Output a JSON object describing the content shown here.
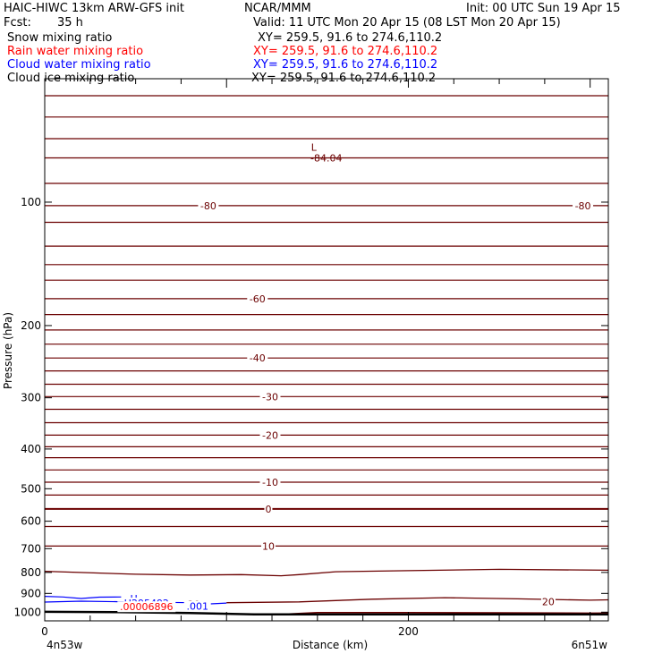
{
  "header": {
    "model": "HAIC-HIWC 13km ARW-GFS init",
    "org": "NCAR/MMM",
    "init": "Init: 00 UTC Sun 19 Apr 15",
    "fcst_label": "Fcst:",
    "fcst_value": "35 h",
    "valid": "Valid: 11 UTC Mon 20 Apr 15 (08 LST Mon 20 Apr 15)"
  },
  "legend": [
    {
      "name": "Snow mixing ratio",
      "xy": "XY= 259.5, 91.6 to 274.6,110.2",
      "color": "#000000"
    },
    {
      "name": "Rain water mixing ratio",
      "xy": "XY= 259.5, 91.6 to 274.6,110.2",
      "color": "#ff0000"
    },
    {
      "name": "Cloud water mixing ratio",
      "xy": "XY= 259.5, 91.6 to 274.6,110.2",
      "color": "#0000ff"
    },
    {
      "name": "Cloud ice mixing ratio",
      "xy": "XY= 259.5, 91.6 to 274.6,110.2",
      "color": "#000000"
    }
  ],
  "chart_data": {
    "type": "line",
    "ylabel": "Pressure (hPa)",
    "xlabel": "Distance (km)",
    "x_range": [
      0,
      310
    ],
    "y_range": [
      1050,
      50
    ],
    "y_scale": "log",
    "y_ticks": [
      100,
      200,
      300,
      400,
      500,
      600,
      700,
      800,
      900,
      1000
    ],
    "x_ticks": [
      0,
      200
    ],
    "x_end_labels": {
      "left": "4n53w",
      "right": "6n51w"
    },
    "temperature_color": "#6b0000",
    "ground_color": "#000000",
    "isotherm_pressures": [
      55,
      62,
      70,
      78,
      90,
      102,
      112,
      128,
      142,
      155,
      172,
      188,
      205,
      222,
      240,
      258,
      278,
      298,
      320,
      345,
      370,
      395,
      420,
      450,
      482,
      518,
      560,
      618,
      690
    ],
    "isotherm_labels": [
      {
        "text": "-80",
        "x": 90,
        "p": 102
      },
      {
        "text": "-80",
        "x": 296,
        "p": 102
      },
      {
        "text": "-60",
        "x": 117,
        "p": 172
      },
      {
        "text": "-40",
        "x": 117,
        "p": 240
      },
      {
        "text": "-30",
        "x": 124,
        "p": 298
      },
      {
        "text": "-20",
        "x": 124,
        "p": 370
      },
      {
        "text": "-10",
        "x": 124,
        "p": 482
      },
      {
        "text": "0",
        "x": 123,
        "p": 560
      },
      {
        "text": "10",
        "x": 123,
        "p": 690
      },
      {
        "text": "20",
        "x": 277,
        "p": 942
      },
      {
        "text": "20",
        "x": 82,
        "p": 954
      }
    ],
    "low_marker": {
      "label": "L",
      "value": "-84.04",
      "x": 148,
      "p": 75
    },
    "curved_isotherms": [
      {
        "name": "isotherm-20",
        "points": [
          [
            0,
            795
          ],
          [
            50,
            808
          ],
          [
            80,
            812
          ],
          [
            108,
            810
          ],
          [
            130,
            815
          ],
          [
            140,
            810
          ],
          [
            160,
            797
          ],
          [
            200,
            792
          ],
          [
            250,
            786
          ],
          [
            310,
            790
          ]
        ]
      },
      {
        "name": "isotherm-30",
        "points": [
          [
            100,
            948
          ],
          [
            140,
            944
          ],
          [
            180,
            930
          ],
          [
            220,
            922
          ],
          [
            260,
            928
          ],
          [
            300,
            935
          ],
          [
            310,
            933
          ]
        ]
      },
      {
        "name": "isotherm-30-low",
        "points": [
          [
            133,
            1010
          ],
          [
            150,
            1002
          ],
          [
            200,
            1002
          ],
          [
            250,
            1003
          ],
          [
            300,
            1005
          ],
          [
            310,
            1004
          ]
        ]
      }
    ],
    "ground": [
      [
        0,
        998
      ],
      [
        40,
        1000
      ],
      [
        80,
        1005
      ],
      [
        115,
        1012
      ],
      [
        150,
        1012
      ],
      [
        250,
        1012
      ],
      [
        310,
        1012
      ]
    ],
    "cloud_water": [
      {
        "name": "cloud-water-upper",
        "points": [
          [
            0,
            915
          ],
          [
            10,
            918
          ],
          [
            20,
            926
          ],
          [
            30,
            919
          ],
          [
            42,
            918
          ]
        ]
      },
      {
        "name": "cloud-water-lower",
        "points": [
          [
            0,
            945
          ],
          [
            20,
            940
          ],
          [
            40,
            943
          ],
          [
            60,
            946
          ],
          [
            80,
            948
          ],
          [
            90,
            955
          ],
          [
            100,
            950
          ]
        ]
      }
    ],
    "cloud_water_labels": [
      {
        "text": "H",
        "x": 49,
        "p": 925
      },
      {
        "text": ".001",
        "x": 84,
        "p": 966
      },
      {
        "text": "H295492",
        "x": 56,
        "p": 950
      }
    ],
    "rain_labels": [
      {
        "text": ".00006896",
        "x": 56,
        "p": 970
      }
    ]
  }
}
